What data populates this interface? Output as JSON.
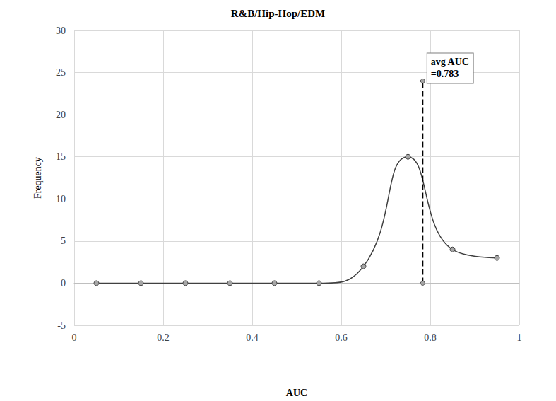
{
  "chart_data": {
    "type": "line",
    "title": "R&B/Hip-Hop/EDM",
    "x_label": "AUC",
    "y_label": "Frequency",
    "x": [
      0.05,
      0.15,
      0.25,
      0.35,
      0.45,
      0.55,
      0.65,
      0.75,
      0.85,
      0.95
    ],
    "values": [
      0,
      0,
      0,
      0,
      0,
      0,
      2,
      15,
      4,
      3
    ],
    "color": "#404040",
    "marker": "circle",
    "xlim": [
      0,
      1
    ],
    "xticks": [
      0,
      0.2,
      0.4,
      0.6,
      0.8,
      1
    ],
    "ylim": [
      -5,
      30
    ],
    "yticks": [
      -5,
      0,
      5,
      10,
      15,
      20,
      25,
      30
    ],
    "grid": true,
    "reference_line": {
      "x": 0.783,
      "y": [
        0,
        24
      ],
      "label": "avg AUC\n=0.783",
      "line_style": "dashed",
      "color": "#000000",
      "marker": "circle"
    }
  }
}
